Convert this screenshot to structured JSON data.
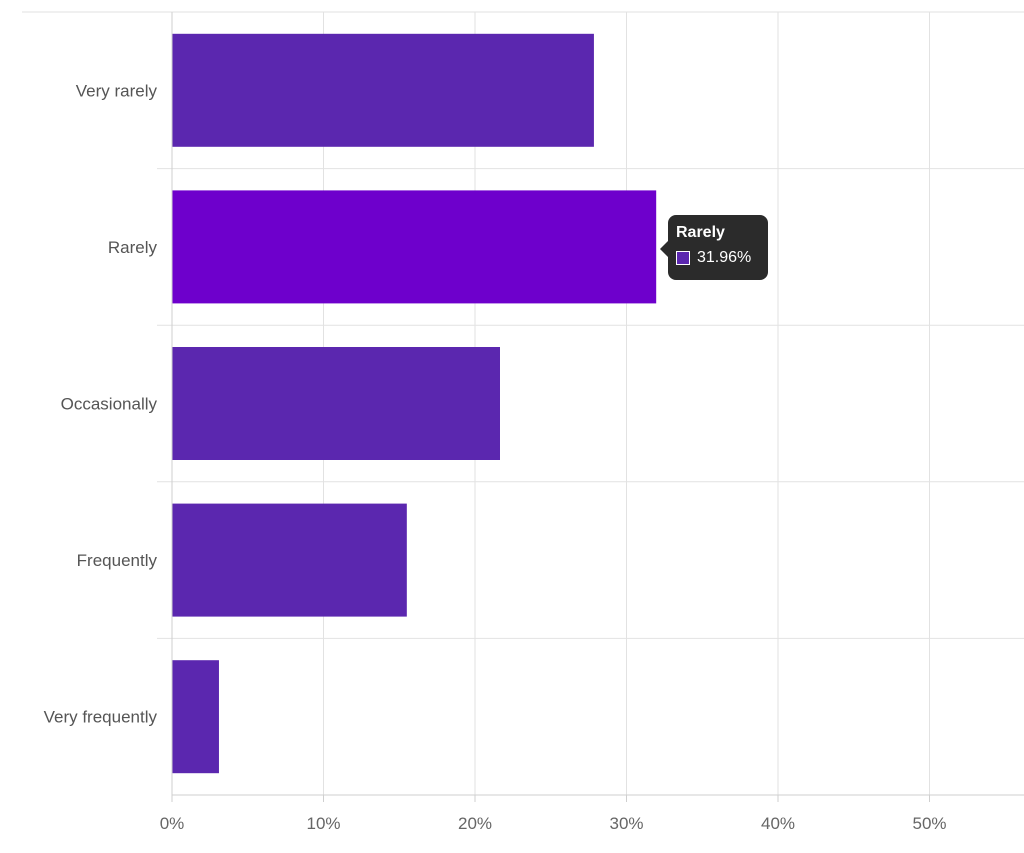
{
  "chart_data": {
    "type": "bar",
    "orientation": "horizontal",
    "categories": [
      "Very rarely",
      "Rarely",
      "Occasionally",
      "Frequently",
      "Very frequently"
    ],
    "values": [
      27.85,
      31.96,
      21.65,
      15.5,
      3.1
    ],
    "value_unit": "%",
    "xlim": [
      0,
      55
    ],
    "x_ticks": [
      "0%",
      "10%",
      "20%",
      "30%",
      "40%",
      "50%"
    ],
    "x_tick_values": [
      0,
      10,
      20,
      30,
      40,
      50
    ],
    "grid": true,
    "bar_color": "#5B27AF",
    "highlight_color": "#6E00CC",
    "highlighted_category": "Rarely"
  },
  "tooltip": {
    "title": "Rarely",
    "value": "31.96%",
    "swatch_color": "#5B27AF"
  }
}
